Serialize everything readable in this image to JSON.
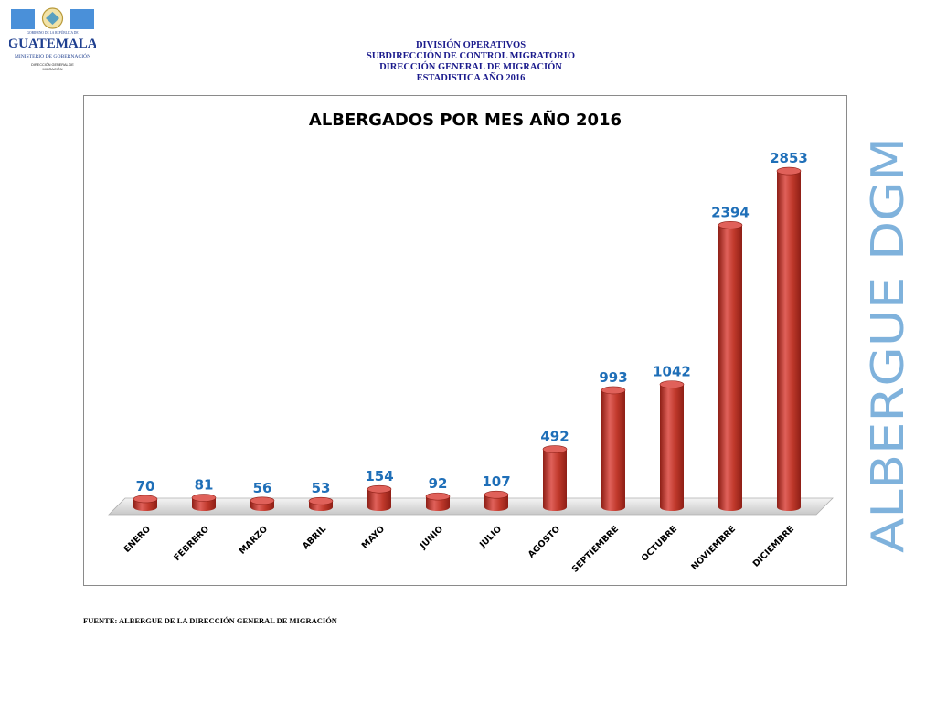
{
  "logo": {
    "top_text": "GOBIERNO DE LA REPÚBLICA DE",
    "country": "GUATEMALA",
    "ministry": "MINISTERIO DE GOBERNACIÓN",
    "direction_line1": "DIRECCIÓN GENERAL DE",
    "direction_line2": "MIGRACIÓN",
    "colors": {
      "blue": "#4a90d9",
      "dark_blue": "#1f3f8f"
    }
  },
  "header": {
    "line1": "DIVISIÓN OPERATIVOS",
    "line2": "SUBDIRECCIÓN DE CONTROL MIGRATORIO",
    "line3": "DIRECCIÓN GENERAL DE MIGRACIÓN",
    "line4": "ESTADISTICA AÑO 2016"
  },
  "side_label": "ALBERGUE DGM",
  "footer": "FUENTE: ALBERGUE DE LA DIRECCIÓN GENERAL DE MIGRACIÓN",
  "colors": {
    "bar": "#c0392b",
    "bar_dark": "#8e1f16",
    "bar_light": "#e0615a",
    "value_label": "#1f6fb8",
    "side_label": "#7fb2dc"
  },
  "chart_data": {
    "type": "bar",
    "title": "ALBERGADOS POR MES AÑO 2016",
    "categories": [
      "ENERO",
      "FEBRERO",
      "MARZO",
      "ABRIL",
      "MAYO",
      "JUNIO",
      "JULIO",
      "AGOSTO",
      "SEPTIEMBRE",
      "OCTUBRE",
      "NOVIEMBRE",
      "DICIEMBRE"
    ],
    "values": [
      70,
      81,
      56,
      53,
      154,
      92,
      107,
      492,
      993,
      1042,
      2394,
      2853
    ],
    "data_labels": [
      "70",
      "81",
      "56",
      "53",
      "154",
      "92",
      "107",
      "492",
      "993",
      "1042",
      "2394",
      "2853"
    ],
    "ylim": [
      0,
      3000
    ],
    "grid": false,
    "legend": "none"
  }
}
